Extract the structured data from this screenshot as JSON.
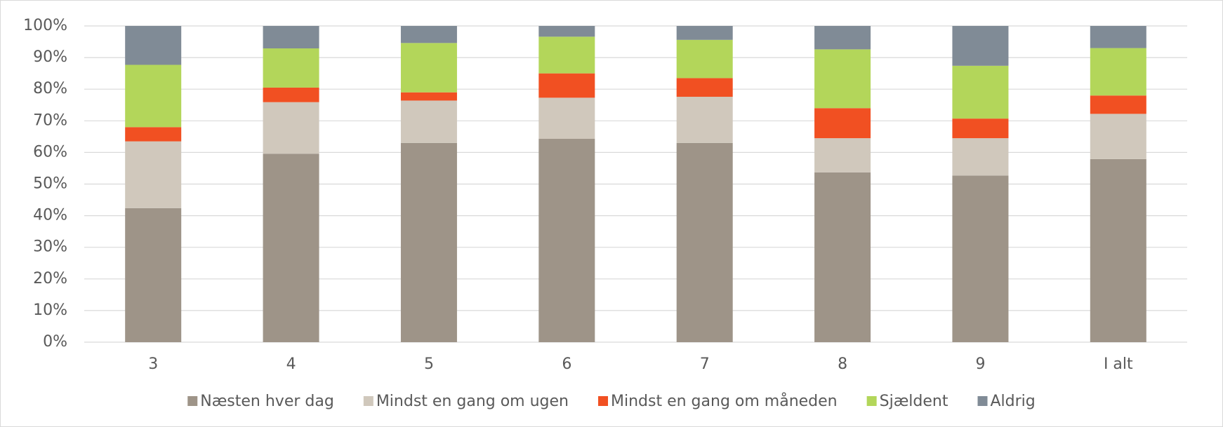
{
  "chart_data": {
    "type": "stacked_bar",
    "categories": [
      "3",
      "4",
      "5",
      "6",
      "7",
      "8",
      "9",
      "I alt"
    ],
    "series": [
      {
        "name": "Næsten hver dag",
        "color": "#9e9488",
        "values": [
          42.4,
          59.6,
          63,
          64.3,
          63,
          53.7,
          52.7,
          57.9
        ]
      },
      {
        "name": "Mindst en gang om ugen",
        "color": "#d0c8bc",
        "values": [
          21.1,
          16.3,
          13.4,
          13,
          14.6,
          10.8,
          11.8,
          14.3
        ]
      },
      {
        "name": "Mindst en gang om måneden",
        "color": "#f15022",
        "values": [
          4.5,
          4.6,
          2.6,
          7.7,
          5.9,
          9.5,
          6.2,
          5.8
        ]
      },
      {
        "name": "Sjældent",
        "color": "#b3d65a",
        "values": [
          19.7,
          12.4,
          15.6,
          11.6,
          12.1,
          18.6,
          16.7,
          15
        ]
      },
      {
        "name": "Aldrig",
        "color": "#808b96",
        "values": [
          12.3,
          7.1,
          5.4,
          3.4,
          4.4,
          7.4,
          12.6,
          7
        ]
      }
    ],
    "ylim": [
      0,
      100
    ],
    "yticks": [
      {
        "value": 0,
        "label": "0%"
      },
      {
        "value": 10,
        "label": "10%"
      },
      {
        "value": 20,
        "label": "20%"
      },
      {
        "value": 30,
        "label": "30%"
      },
      {
        "value": 40,
        "label": "40%"
      },
      {
        "value": 50,
        "label": "50%"
      },
      {
        "value": 60,
        "label": "60%"
      },
      {
        "value": 70,
        "label": "70%"
      },
      {
        "value": 80,
        "label": "80%"
      },
      {
        "value": 90,
        "label": "90%"
      },
      {
        "value": 100,
        "label": "100%"
      }
    ],
    "grid": true,
    "legend": "bottom"
  }
}
